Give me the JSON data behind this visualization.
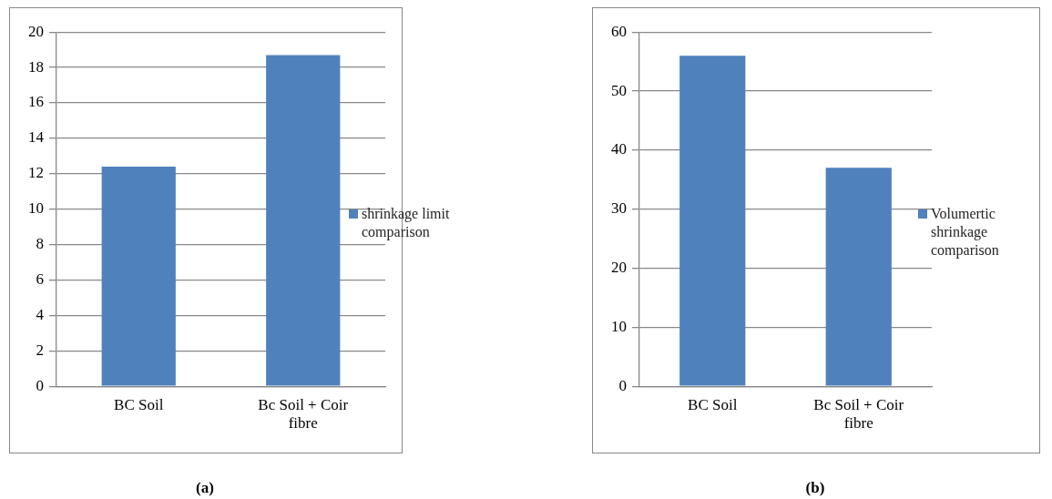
{
  "chart_data": [
    {
      "type": "bar",
      "title": "(a)",
      "categories": [
        "BC Soil",
        "Bc Soil + Coir fibre"
      ],
      "series": [
        {
          "name": "shrinkage limit comparison",
          "color": "#4f81bd",
          "values": [
            12.4,
            18.7
          ]
        }
      ],
      "ylim": [
        0,
        20
      ],
      "yticks": [
        0,
        2,
        4,
        6,
        8,
        10,
        12,
        14,
        16,
        18,
        20
      ],
      "grid": "y",
      "legend": "right"
    },
    {
      "type": "bar",
      "title": "(b)",
      "categories": [
        "BC Soil",
        "Bc Soil + Coir fibre"
      ],
      "series": [
        {
          "name": "Volumertic shrinkage comparison",
          "color": "#4f81bd",
          "values": [
            56,
            37
          ]
        }
      ],
      "ylim": [
        0,
        60
      ],
      "yticks": [
        0,
        10,
        20,
        30,
        40,
        50,
        60
      ],
      "grid": "y",
      "legend": "right"
    }
  ]
}
